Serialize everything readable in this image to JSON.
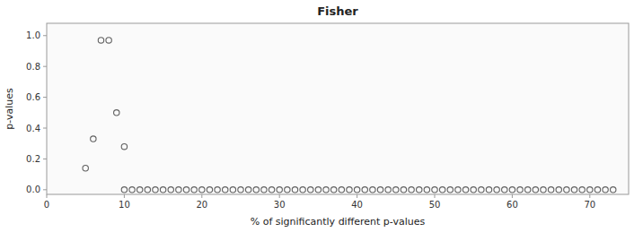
{
  "chart_data": {
    "type": "scatter",
    "title": "Fisher",
    "x_label": "% of significantly different p-values",
    "y_label": "p-values",
    "xlim": [
      0,
      75
    ],
    "ylim": [
      -0.03,
      1.08
    ],
    "xticks": [
      0,
      10,
      20,
      30,
      40,
      50,
      60,
      70
    ],
    "yticks": [
      {
        "value": 0.0,
        "label": "0.0"
      },
      0.2,
      0.4,
      0.6,
      0.8,
      {
        "value": 1.0,
        "label": "1.0"
      }
    ],
    "grid": false,
    "marker": "circle-open",
    "color": "#606060",
    "x": [
      5,
      6,
      7,
      8,
      9,
      10,
      10,
      11,
      12,
      13,
      14,
      15,
      16,
      17,
      18,
      19,
      20,
      21,
      22,
      23,
      24,
      25,
      26,
      27,
      28,
      29,
      30,
      31,
      32,
      33,
      34,
      35,
      36,
      37,
      38,
      39,
      40,
      41,
      42,
      43,
      44,
      45,
      46,
      47,
      48,
      49,
      50,
      51,
      52,
      53,
      54,
      55,
      56,
      57,
      58,
      59,
      60,
      61,
      62,
      63,
      64,
      65,
      66,
      67,
      68,
      69,
      70,
      71,
      72,
      73
    ],
    "values": [
      0.14,
      0.33,
      0.97,
      0.97,
      0.5,
      0.28,
      0.0,
      0.0,
      0.0,
      0.0,
      0.0,
      0.0,
      0.0,
      0.0,
      0.0,
      0.0,
      0.0,
      0.0,
      0.0,
      0.0,
      0.0,
      0.0,
      0.0,
      0.0,
      0.0,
      0.0,
      0.0,
      0.0,
      0.0,
      0.0,
      0.0,
      0.0,
      0.0,
      0.0,
      0.0,
      0.0,
      0.0,
      0.0,
      0.0,
      0.0,
      0.0,
      0.0,
      0.0,
      0.0,
      0.0,
      0.0,
      0.0,
      0.0,
      0.0,
      0.0,
      0.0,
      0.0,
      0.0,
      0.0,
      0.0,
      0.0,
      0.0,
      0.0,
      0.0,
      0.0,
      0.0,
      0.0,
      0.0,
      0.0,
      0.0,
      0.0,
      0.0,
      0.0,
      0.0,
      0.0
    ]
  }
}
